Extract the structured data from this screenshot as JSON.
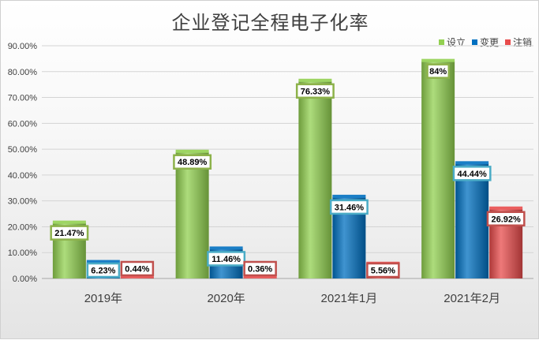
{
  "chart_data": {
    "type": "bar",
    "title": "企业登记全程电子化率",
    "categories": [
      "2019年",
      "2020年",
      "2021年1月",
      "2021年2月"
    ],
    "series": [
      {
        "name": "设立",
        "values": [
          21.47,
          48.89,
          76.33,
          84
        ],
        "labels": [
          "21.47%",
          "48.89%",
          "76.33%",
          "84%"
        ],
        "color": "#92d050"
      },
      {
        "name": "变更",
        "values": [
          6.23,
          11.46,
          31.46,
          44.44
        ],
        "labels": [
          "6.23%",
          "11.46%",
          "31.46%",
          "44.44%"
        ],
        "color": "#0070c0"
      },
      {
        "name": "注销",
        "values": [
          0.44,
          0.36,
          5.56,
          26.92
        ],
        "labels": [
          "0.44%",
          "0.36%",
          "5.56%",
          "26.92%"
        ],
        "color": "#e84c4c"
      }
    ],
    "yticks": [
      "0.00%",
      "10.00%",
      "20.00%",
      "30.00%",
      "40.00%",
      "50.00%",
      "60.00%",
      "70.00%",
      "80.00%",
      "90.00%"
    ],
    "ylim": [
      0,
      90
    ],
    "grid": true,
    "legend_position": "top-right",
    "xlabel": "",
    "ylabel": ""
  }
}
